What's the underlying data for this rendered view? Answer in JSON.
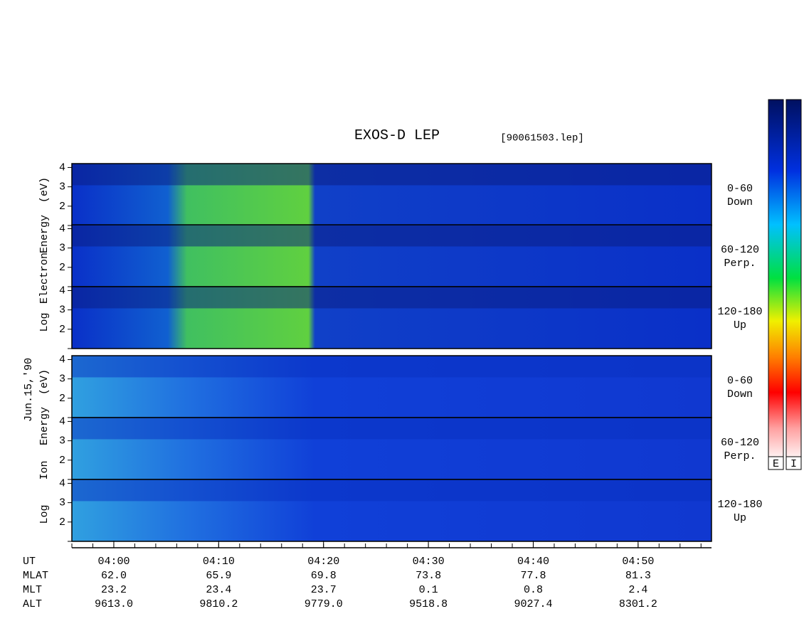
{
  "chart_data": {
    "type": "spectrogram",
    "title": "EXOS-D LEP",
    "file": "[90061503.lep]",
    "date_label": "Jun.15,'90",
    "groups": [
      {
        "name": "electron",
        "axis_label": [
          "Log",
          "Electron",
          "Energy",
          "(eV)"
        ]
      },
      {
        "name": "ion",
        "axis_label": [
          "Log",
          "Ion",
          "Energy",
          "(eV)"
        ]
      }
    ],
    "panels": [
      {
        "group": 0,
        "label_lines": [
          "0-60",
          "Down"
        ]
      },
      {
        "group": 0,
        "label_lines": [
          "60-120",
          "Perp."
        ]
      },
      {
        "group": 0,
        "label_lines": [
          "120-180",
          "Up"
        ]
      },
      {
        "group": 1,
        "label_lines": [
          "0-60",
          "Down"
        ]
      },
      {
        "group": 1,
        "label_lines": [
          "60-120",
          "Perp."
        ]
      },
      {
        "group": 1,
        "label_lines": [
          "120-180",
          "Up"
        ]
      }
    ],
    "ylim": [
      1,
      4.2
    ],
    "yticks": [
      2,
      3,
      4
    ],
    "xlim": [
      "03:56",
      "04:57"
    ],
    "xticks": [
      "04:00",
      "04:10",
      "04:20",
      "04:30",
      "04:40",
      "04:50"
    ],
    "x_axis_label": "UT",
    "ephemeris": [
      {
        "name": "MLAT",
        "values": [
          "62.0",
          "65.9",
          "69.8",
          "73.8",
          "77.8",
          "81.3"
        ]
      },
      {
        "name": "MLT",
        "values": [
          "23.2",
          "23.4",
          "23.7",
          "0.1",
          "0.8",
          "2.4"
        ]
      },
      {
        "name": "ALT",
        "values": [
          "9613.0",
          "9810.2",
          "9779.0",
          "9518.8",
          "9027.4",
          "8301.2"
        ]
      }
    ],
    "colorbars": [
      "E",
      "I"
    ]
  }
}
